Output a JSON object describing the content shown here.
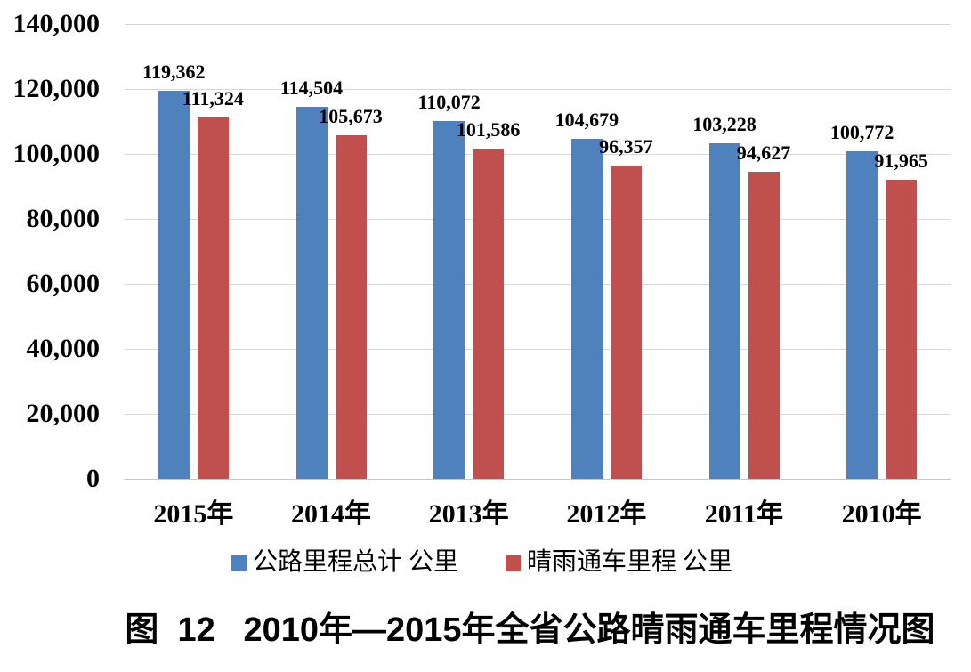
{
  "chart_data": {
    "type": "bar",
    "title": "图  12   2010年—2015年全省公路晴雨通车里程情况图",
    "categories": [
      "2015年",
      "2014年",
      "2013年",
      "2012年",
      "2011年",
      "2010年"
    ],
    "series": [
      {
        "name": "公路里程总计 公里",
        "color": "#4F81BD",
        "values": [
          119362,
          114504,
          110072,
          104679,
          103228,
          100772
        ],
        "labels": [
          "119,362",
          "114,504",
          "110,072",
          "104,679",
          "103,228",
          "100,772"
        ]
      },
      {
        "name": "晴雨通车里程 公里",
        "color": "#C0504D",
        "values": [
          111324,
          105673,
          101586,
          96357,
          94627,
          91965
        ],
        "labels": [
          "111,324",
          "105,673",
          "101,586",
          "96,357",
          "94,627",
          "91,965"
        ]
      }
    ],
    "xlabel": "",
    "ylabel": "",
    "y_axis": {
      "min": 0,
      "max": 140000,
      "tick_step": 20000,
      "tick_labels": [
        "0",
        "20,000",
        "40,000",
        "60,000",
        "80,000",
        "100,000",
        "120,000",
        "140,000"
      ]
    },
    "grid": true,
    "legend_position": "bottom",
    "colors": {
      "gridline": "#D9D9D9",
      "axis_line": "#C6C6C6",
      "text": "#000000",
      "background": "#FFFFFF"
    }
  }
}
